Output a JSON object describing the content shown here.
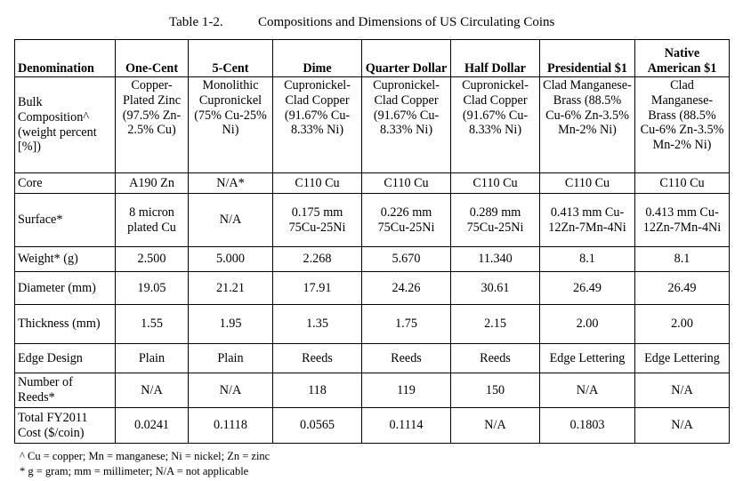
{
  "caption": {
    "number": "Table 1-2.",
    "title": "Compositions and Dimensions of US Circulating Coins"
  },
  "columns": [
    "Denomination",
    "One-Cent",
    "5-Cent",
    "Dime",
    "Quarter Dollar",
    "Half Dollar",
    "Presidential $1",
    "Native American $1"
  ],
  "rows": [
    {
      "label": "Bulk Composition^ (weight percent [%])",
      "cells": [
        "Copper-Plated Zinc (97.5% Zn-2.5% Cu)",
        "Monolithic Cupronickel (75% Cu-25% Ni)",
        "Cupronickel-Clad Copper (91.67% Cu-8.33% Ni)",
        "Cupronickel-Clad Copper (91.67% Cu-8.33% Ni)",
        "Cupronickel-Clad Copper (91.67% Cu-8.33% Ni)",
        "Clad Manganese-Brass (88.5% Cu-6% Zn-3.5% Mn-2% Ni)",
        "Clad Manganese-Brass (88.5% Cu-6% Zn-3.5% Mn-2% Ni)"
      ]
    },
    {
      "label": "Core",
      "cells": [
        "A190 Zn",
        "N/A*",
        "C110 Cu",
        "C110 Cu",
        "C110 Cu",
        "C110 Cu",
        "C110 Cu"
      ]
    },
    {
      "label": "Surface*",
      "cells": [
        "8 micron plated Cu",
        "N/A",
        "0.175 mm 75Cu-25Ni",
        "0.226 mm 75Cu-25Ni",
        "0.289 mm 75Cu-25Ni",
        "0.413 mm Cu-12Zn-7Mn-4Ni",
        "0.413 mm Cu-12Zn-7Mn-4Ni"
      ]
    },
    {
      "label": "Weight* (g)",
      "cells": [
        "2.500",
        "5.000",
        "2.268",
        "5.670",
        "11.340",
        "8.1",
        "8.1"
      ]
    },
    {
      "label": "Diameter (mm)",
      "cells": [
        "19.05",
        "21.21",
        "17.91",
        "24.26",
        "30.61",
        "26.49",
        "26.49"
      ]
    },
    {
      "label": "Thickness (mm)",
      "cells": [
        "1.55",
        "1.95",
        "1.35",
        "1.75",
        "2.15",
        "2.00",
        "2.00"
      ]
    },
    {
      "label": "Edge Design",
      "cells": [
        "Plain",
        "Plain",
        "Reeds",
        "Reeds",
        "Reeds",
        "Edge Lettering",
        "Edge Lettering"
      ]
    },
    {
      "label": "Number of Reeds*",
      "cells": [
        "N/A",
        "N/A",
        "118",
        "119",
        "150",
        "N/A",
        "N/A"
      ]
    },
    {
      "label": "Total FY2011 Cost ($/coin)",
      "cells": [
        "0.0241",
        "0.1118",
        "0.0565",
        "0.1114",
        "N/A",
        "0.1803",
        "N/A"
      ]
    }
  ],
  "footnotes": [
    "^ Cu = copper; Mn = manganese; Ni = nickel; Zn = zinc",
    "* g = gram; mm = millimeter; N/A = not applicable"
  ]
}
